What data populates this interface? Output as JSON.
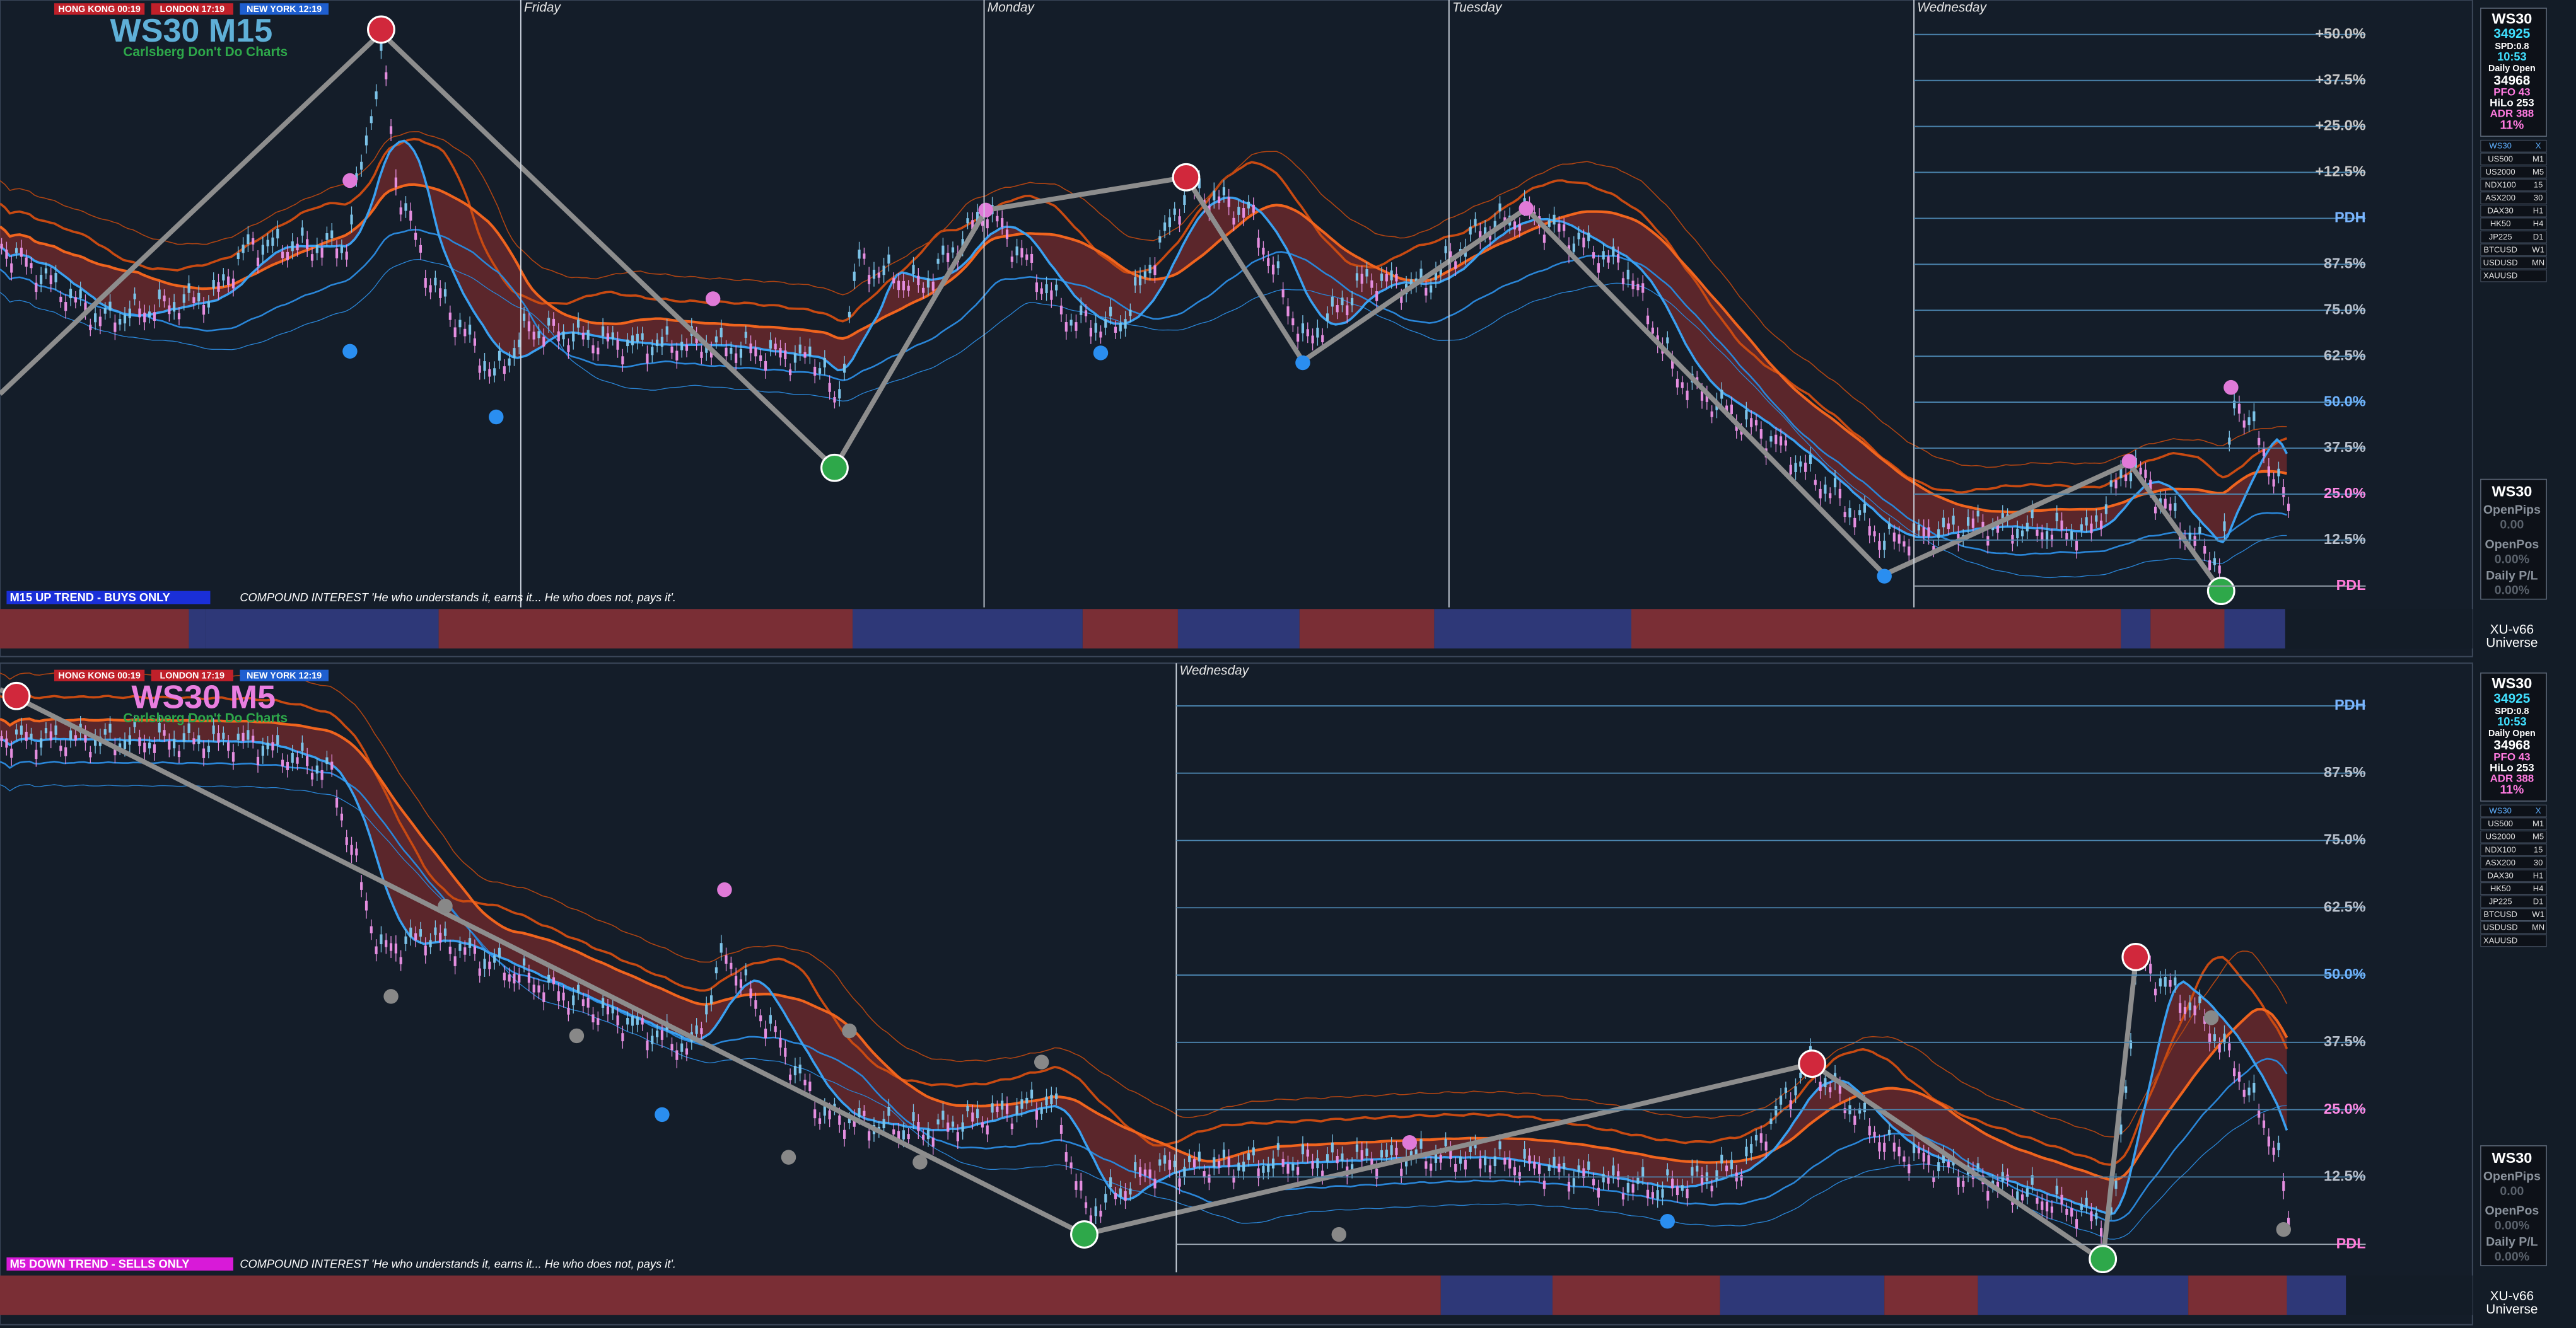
{
  "top_panel": {
    "sessions": [
      "HONG KONG 00:19",
      "LONDON 17:19",
      "NEW YORK 12:19"
    ],
    "symbol_title": "WS30 M15",
    "subtitle": "Carlsberg Don't Do Charts",
    "days": [
      "Friday",
      "Monday",
      "Tuesday",
      "Wednesday"
    ],
    "levels": [
      "+50.0%",
      "+37.5%",
      "+25.0%",
      "+12.5%",
      "PDH",
      "87.5%",
      "75.0%",
      "62.5%",
      "50.0%",
      "37.5%",
      "25.0%",
      "12.5%",
      "PDL"
    ],
    "trend": "M15  UP TREND - BUYS ONLY",
    "quote": "COMPOUND INTEREST 'He who understands it, earns it... He who does not, pays it'."
  },
  "bottom_panel": {
    "symbol_title": "WS30 M5",
    "subtitle": "Carlsberg Don't Do Charts",
    "days": [
      "Wednesday"
    ],
    "levels": [
      "PDH",
      "87.5%",
      "75.0%",
      "62.5%",
      "50.0%",
      "37.5%",
      "25.0%",
      "12.5%",
      "PDL"
    ],
    "trend": "M5  DOWN TREND - SELLS ONLY",
    "quote": "COMPOUND INTEREST 'He who understands it, earns it... He who does not, pays it'."
  },
  "info_panel": {
    "symbol": "WS30",
    "price": "34925",
    "spread": "SPD:0.8",
    "time": "10:53",
    "daily_open_label": "Daily Open",
    "daily_open": "34968",
    "pfo": "PFO  43",
    "hilo": "HiLo 253",
    "adr": "ADR 388",
    "adr_pct": "11%"
  },
  "symbols": [
    [
      "WS30",
      "X"
    ],
    [
      "US500",
      "M1"
    ],
    [
      "US2000",
      "M5"
    ],
    [
      "NDX100",
      "15"
    ],
    [
      "ASX200",
      "30"
    ],
    [
      "DAX30",
      "H1"
    ],
    [
      "HK50",
      "H4"
    ],
    [
      "JP225",
      "D1"
    ],
    [
      "BTCUSD",
      "W1"
    ],
    [
      "USDUSD",
      "MN"
    ],
    [
      "XAUUSD"
    ]
  ],
  "account": {
    "symbol": "WS30",
    "open_pips_label": "OpenPips",
    "open_pips": "0.00",
    "open_pos_label": "OpenPos",
    "open_pos": "0.00%",
    "daily_pl_label": "Daily P/L",
    "daily_pl": "0.00%"
  },
  "footer": {
    "name": "XU-v66",
    "sub": "Universe"
  }
}
